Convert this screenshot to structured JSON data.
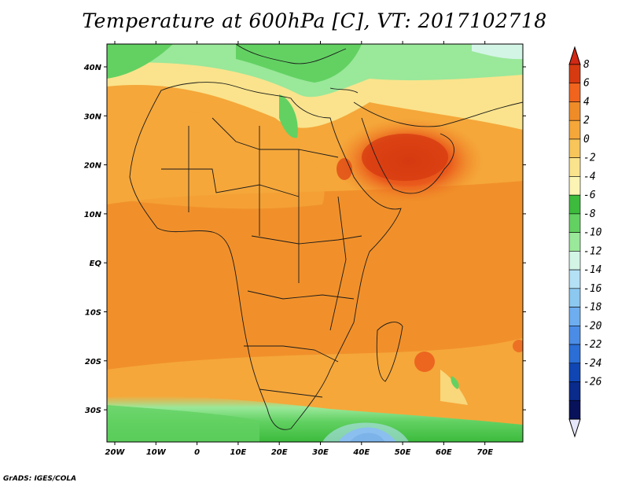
{
  "title": "Temperature at 600hPa [C], VT: 2017102718",
  "credit": "GrADS: IGES/COLA",
  "map": {
    "lat_labels": [
      "40N",
      "30N",
      "20N",
      "10N",
      "EQ",
      "10S",
      "20S",
      "30S"
    ],
    "lon_labels": [
      "20W",
      "10W",
      "0",
      "10E",
      "20E",
      "30E",
      "40E",
      "50E",
      "60E",
      "70E"
    ],
    "region": "Africa"
  },
  "colorbar": {
    "labels": [
      "8",
      "6",
      "4",
      "2",
      "0",
      "-2",
      "-4",
      "-6",
      "-8",
      "-10",
      "-12",
      "-14",
      "-16",
      "-18",
      "-20",
      "-22",
      "-24",
      "-26"
    ],
    "colors": [
      "#d63a10",
      "#f0641e",
      "#f08c28",
      "#f5a73a",
      "#f7c55a",
      "#fae38c",
      "#fbf4b4",
      "#3cbb3c",
      "#62d162",
      "#9ae89a",
      "#d3f5e6",
      "#b4e1f5",
      "#8cc8f0",
      "#6eaef0",
      "#4b8de6",
      "#2a6ed6",
      "#0f46b4",
      "#0a2a8c",
      "#08125a"
    ],
    "over_color": "#d22814",
    "under_color": "#e6e6fa"
  }
}
